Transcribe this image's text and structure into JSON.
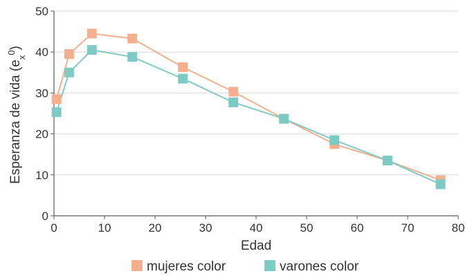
{
  "chart_data": {
    "type": "line",
    "xlabel": "Edad",
    "ylabel": {
      "main": "Esperanza de vida (e",
      "sub": "x",
      "sup": "0",
      "close": ")"
    },
    "xlim": [
      0,
      80
    ],
    "ylim": [
      0,
      50
    ],
    "x_ticks": [
      0,
      10,
      20,
      30,
      40,
      50,
      60,
      70,
      80
    ],
    "y_ticks": [
      0,
      10,
      20,
      30,
      40,
      50
    ],
    "grid": "horizontal",
    "legend_position": "bottom",
    "series": [
      {
        "name": "mujeres color",
        "color": "#F4B08E",
        "marker": "square",
        "x": [
          0.5,
          3,
          7.5,
          15.5,
          25.5,
          35.5,
          45.5,
          55.5,
          66,
          76.5
        ],
        "y": [
          28.5,
          39.5,
          44.5,
          43.3,
          36.3,
          30.3,
          23.7,
          17.5,
          13.5,
          8.7
        ]
      },
      {
        "name": "varones color",
        "color": "#7DCBC4",
        "marker": "square",
        "x": [
          0.5,
          3,
          7.5,
          15.5,
          25.5,
          35.5,
          45.5,
          55.5,
          66,
          76.5
        ],
        "y": [
          25.3,
          35.0,
          40.5,
          38.8,
          33.5,
          27.7,
          23.7,
          18.5,
          13.5,
          7.7
        ]
      }
    ]
  }
}
